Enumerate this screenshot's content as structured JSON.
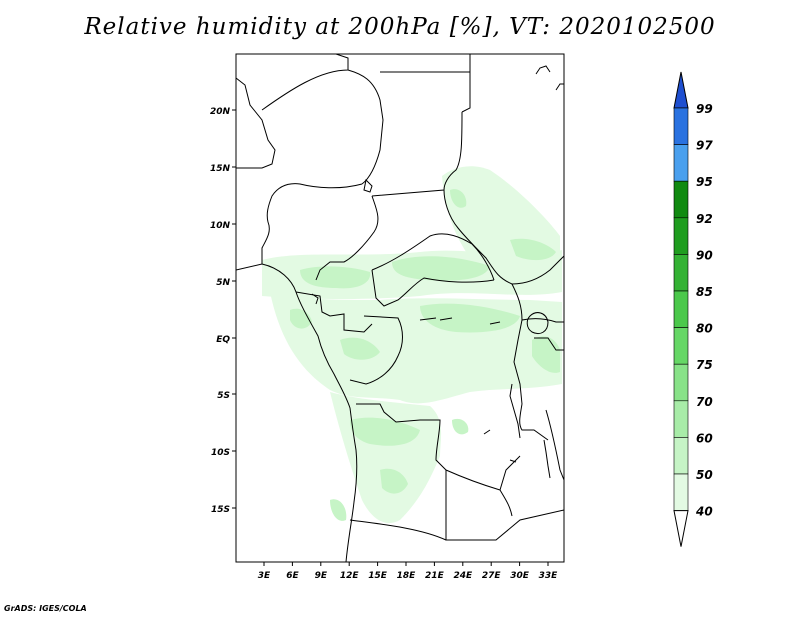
{
  "title": "Relative humidity at 200hPa [%], VT: 2020102500",
  "credit": "GrADS: IGES/COLA",
  "map": {
    "lat_labels": [
      "20N",
      "15N",
      "10N",
      "5N",
      "EQ",
      "5S",
      "10S",
      "15S"
    ],
    "lon_labels": [
      "3E",
      "6E",
      "9E",
      "12E",
      "15E",
      "18E",
      "21E",
      "24E",
      "27E",
      "30E",
      "33E"
    ]
  },
  "colorbar": {
    "labels": [
      "99",
      "97",
      "95",
      "92",
      "90",
      "85",
      "80",
      "75",
      "70",
      "60",
      "50",
      "40"
    ],
    "colors": [
      "#1e4fd0",
      "#2a72e0",
      "#4aa0ee",
      "#118a11",
      "#1f9d1f",
      "#34b234",
      "#4bc84b",
      "#66d766",
      "#88e288",
      "#a8eca8",
      "#c6f4c6",
      "#e3fae3",
      "#ffffff"
    ]
  }
}
